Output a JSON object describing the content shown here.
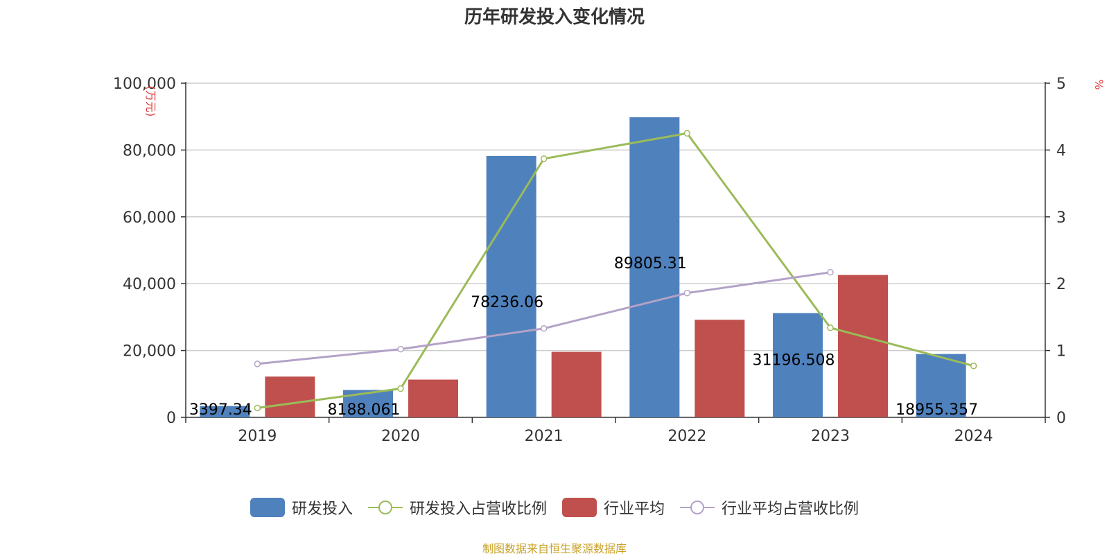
{
  "chart_data": {
    "type": "bar",
    "title": "历年研发投入变化情况",
    "categories": [
      "2019",
      "2020",
      "2021",
      "2022",
      "2023",
      "2024"
    ],
    "y_left": {
      "unit_label": "(万元)",
      "ylim": [
        0,
        100000
      ],
      "ticks": [
        "0",
        "20,000",
        "40,000",
        "60,000",
        "80,000",
        "100,000"
      ],
      "tick_values": [
        0,
        20000,
        40000,
        60000,
        80000,
        100000
      ]
    },
    "y_right": {
      "unit_label": "%",
      "ylim": [
        0,
        5
      ],
      "ticks": [
        "0",
        "1",
        "2",
        "3",
        "4",
        "5"
      ],
      "tick_values": [
        0,
        1,
        2,
        3,
        4,
        5
      ]
    },
    "grid": true,
    "legend_placement": "bottom",
    "series": [
      {
        "name": "研发投入",
        "kind": "bar",
        "axis": "left",
        "color": "#4f81bd",
        "values": [
          3397.34,
          8188.061,
          78236.06,
          89805.31,
          31196.508,
          18955.357
        ],
        "labels": [
          "3397.34",
          "8188.061",
          "78236.06",
          "89805.31",
          "31196.508",
          "18955.357"
        ]
      },
      {
        "name": "研发投入占营收比例",
        "kind": "line",
        "axis": "right",
        "color": "#9bbb59",
        "values": [
          0.14,
          0.43,
          3.87,
          4.25,
          1.34,
          0.77
        ]
      },
      {
        "name": "行业平均",
        "kind": "bar",
        "axis": "left",
        "color": "#c0504d",
        "values": [
          12200,
          11300,
          19600,
          29200,
          42600,
          null
        ]
      },
      {
        "name": "行业平均占营收比例",
        "kind": "line",
        "axis": "right",
        "color": "#b3a2c7",
        "values": [
          0.8,
          1.02,
          1.33,
          1.86,
          2.17,
          null
        ]
      }
    ]
  },
  "source": "制图数据来自恒生聚源数据库"
}
